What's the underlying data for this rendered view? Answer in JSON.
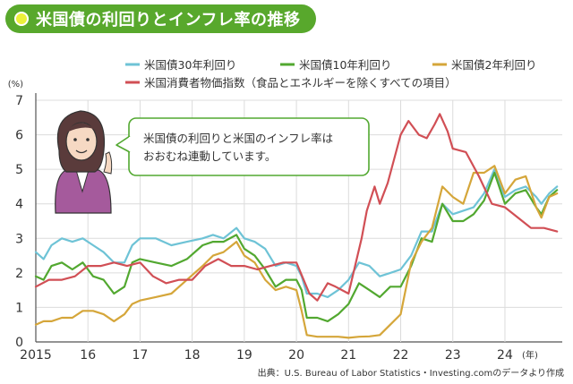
{
  "header": {
    "title": "米国債の利回りとインフレ率の推移",
    "accent_color": "#58a82c",
    "dot_color": "#ecf03a"
  },
  "speech": {
    "line1": "米国債の利回りと米国のインフレ率は",
    "line2": "おおむね連動しています。"
  },
  "source_note": "出典：U.S. Bureau of Labor Statistics・Investing.comのデータより作成",
  "chart_data": {
    "type": "line",
    "ylabel": "(%)",
    "x_unit": "(年)",
    "ylim": [
      0,
      7
    ],
    "yticks": [
      "0",
      "1",
      "2",
      "3",
      "4",
      "5",
      "6",
      "7"
    ],
    "xlim": [
      2015,
      2025.1
    ],
    "xticks": [
      {
        "value": 2015,
        "label": "2015"
      },
      {
        "value": 2016,
        "label": "16"
      },
      {
        "value": 2017,
        "label": "17"
      },
      {
        "value": 2018,
        "label": "18"
      },
      {
        "value": 2019,
        "label": "19"
      },
      {
        "value": 2020,
        "label": "20"
      },
      {
        "value": 2021,
        "label": "21"
      },
      {
        "value": 2022,
        "label": "22"
      },
      {
        "value": 2023,
        "label": "23"
      },
      {
        "value": 2024,
        "label": "24"
      }
    ],
    "grid": true,
    "legend": "top",
    "series": [
      {
        "name": "米国債30年利回り",
        "color": "#6ec3d6",
        "x": [
          2015.0,
          2015.15,
          2015.3,
          2015.5,
          2015.7,
          2015.9,
          2016.1,
          2016.3,
          2016.5,
          2016.7,
          2016.85,
          2017.0,
          2017.3,
          2017.6,
          2017.9,
          2018.2,
          2018.4,
          2018.6,
          2018.85,
          2019.0,
          2019.2,
          2019.4,
          2019.6,
          2019.8,
          2020.0,
          2020.1,
          2020.2,
          2020.4,
          2020.6,
          2020.8,
          2021.0,
          2021.2,
          2021.4,
          2021.6,
          2021.8,
          2022.0,
          2022.2,
          2022.4,
          2022.6,
          2022.8,
          2023.0,
          2023.2,
          2023.4,
          2023.6,
          2023.8,
          2024.0,
          2024.2,
          2024.4,
          2024.6,
          2024.7,
          2024.85,
          2025.0
        ],
        "y": [
          2.6,
          2.4,
          2.8,
          3.0,
          2.9,
          3.0,
          2.8,
          2.6,
          2.3,
          2.3,
          2.8,
          3.0,
          3.0,
          2.8,
          2.9,
          3.0,
          3.1,
          3.0,
          3.3,
          3.0,
          2.9,
          2.7,
          2.2,
          2.3,
          2.2,
          1.9,
          1.4,
          1.4,
          1.3,
          1.5,
          1.8,
          2.3,
          2.2,
          1.9,
          2.0,
          2.1,
          2.5,
          3.2,
          3.2,
          4.0,
          3.7,
          3.8,
          3.9,
          4.3,
          5.0,
          4.2,
          4.4,
          4.5,
          4.2,
          4.0,
          4.3,
          4.5
        ]
      },
      {
        "name": "米国債10年利回り",
        "color": "#52a830",
        "x": [
          2015.0,
          2015.15,
          2015.3,
          2015.5,
          2015.7,
          2015.9,
          2016.1,
          2016.3,
          2016.5,
          2016.7,
          2016.85,
          2017.0,
          2017.3,
          2017.6,
          2017.9,
          2018.2,
          2018.4,
          2018.6,
          2018.85,
          2019.0,
          2019.2,
          2019.4,
          2019.6,
          2019.8,
          2020.0,
          2020.1,
          2020.2,
          2020.4,
          2020.6,
          2020.8,
          2021.0,
          2021.2,
          2021.4,
          2021.6,
          2021.8,
          2022.0,
          2022.2,
          2022.4,
          2022.6,
          2022.8,
          2023.0,
          2023.2,
          2023.4,
          2023.6,
          2023.8,
          2024.0,
          2024.2,
          2024.4,
          2024.6,
          2024.7,
          2024.85,
          2025.0
        ],
        "y": [
          1.9,
          1.8,
          2.2,
          2.3,
          2.1,
          2.3,
          1.9,
          1.8,
          1.4,
          1.6,
          2.3,
          2.4,
          2.3,
          2.2,
          2.4,
          2.8,
          2.9,
          2.9,
          3.1,
          2.7,
          2.5,
          2.1,
          1.6,
          1.8,
          1.8,
          1.5,
          0.7,
          0.7,
          0.6,
          0.8,
          1.1,
          1.7,
          1.5,
          1.3,
          1.6,
          1.6,
          2.2,
          3.0,
          2.9,
          4.0,
          3.5,
          3.5,
          3.7,
          4.1,
          4.9,
          4.0,
          4.3,
          4.4,
          3.9,
          3.7,
          4.2,
          4.4
        ]
      },
      {
        "name": "米国債2年利回り",
        "color": "#d5a63a",
        "x": [
          2015.0,
          2015.15,
          2015.3,
          2015.5,
          2015.7,
          2015.9,
          2016.1,
          2016.3,
          2016.5,
          2016.7,
          2016.85,
          2017.0,
          2017.3,
          2017.6,
          2017.9,
          2018.2,
          2018.4,
          2018.6,
          2018.85,
          2019.0,
          2019.2,
          2019.4,
          2019.6,
          2019.8,
          2020.0,
          2020.1,
          2020.2,
          2020.4,
          2020.6,
          2020.8,
          2021.0,
          2021.2,
          2021.4,
          2021.6,
          2021.8,
          2022.0,
          2022.2,
          2022.4,
          2022.6,
          2022.8,
          2023.0,
          2023.2,
          2023.4,
          2023.6,
          2023.8,
          2024.0,
          2024.2,
          2024.4,
          2024.6,
          2024.7,
          2024.85,
          2025.0
        ],
        "y": [
          0.5,
          0.6,
          0.6,
          0.7,
          0.7,
          0.9,
          0.9,
          0.8,
          0.6,
          0.8,
          1.1,
          1.2,
          1.3,
          1.4,
          1.8,
          2.2,
          2.5,
          2.6,
          2.9,
          2.5,
          2.3,
          1.8,
          1.5,
          1.6,
          1.5,
          0.9,
          0.2,
          0.15,
          0.15,
          0.15,
          0.12,
          0.15,
          0.16,
          0.2,
          0.5,
          0.8,
          2.3,
          2.9,
          3.3,
          4.5,
          4.2,
          4.0,
          4.9,
          4.9,
          5.1,
          4.3,
          4.7,
          4.8,
          3.9,
          3.6,
          4.2,
          4.3
        ]
      },
      {
        "name": "米国消費者物価指数（食品とエネルギーを除くすべての項目）",
        "color": "#d14f55",
        "x": [
          2015.0,
          2015.25,
          2015.5,
          2015.75,
          2016.0,
          2016.25,
          2016.5,
          2016.75,
          2017.0,
          2017.25,
          2017.5,
          2017.75,
          2018.0,
          2018.25,
          2018.5,
          2018.75,
          2019.0,
          2019.25,
          2019.5,
          2019.75,
          2020.0,
          2020.25,
          2020.4,
          2020.6,
          2020.75,
          2021.0,
          2021.25,
          2021.35,
          2021.5,
          2021.6,
          2021.75,
          2022.0,
          2022.15,
          2022.35,
          2022.5,
          2022.65,
          2022.75,
          2022.9,
          2023.0,
          2023.25,
          2023.5,
          2023.75,
          2024.0,
          2024.25,
          2024.5,
          2024.75,
          2025.0
        ],
        "y": [
          1.6,
          1.8,
          1.8,
          1.9,
          2.2,
          2.2,
          2.3,
          2.2,
          2.3,
          1.9,
          1.7,
          1.8,
          1.8,
          2.2,
          2.4,
          2.2,
          2.2,
          2.1,
          2.2,
          2.3,
          2.3,
          1.4,
          1.2,
          1.7,
          1.6,
          1.4,
          3.0,
          3.8,
          4.5,
          4.0,
          4.6,
          6.0,
          6.4,
          6.0,
          5.9,
          6.3,
          6.6,
          6.1,
          5.6,
          5.5,
          4.8,
          4.0,
          3.9,
          3.6,
          3.3,
          3.3,
          3.2
        ]
      }
    ]
  }
}
